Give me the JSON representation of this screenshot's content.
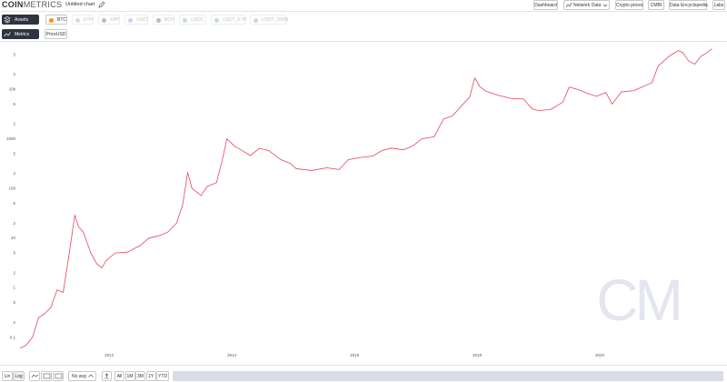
{
  "header": {
    "logo_bold": "COIN",
    "logo_light": "METRICS",
    "title": "Untitled chart",
    "nav": [
      "Dashboard",
      "Network Data",
      "Crypto prices",
      "CMBI",
      "Data Encyclopedia",
      "Labs"
    ]
  },
  "assets": {
    "label": "Assets",
    "chips": [
      "BTC",
      "ETH",
      "XRP",
      "USDT",
      "BCH",
      "USDC",
      "USDT_ETH",
      "USDT_OMNI"
    ]
  },
  "metrics": {
    "label": "Metrics"
  },
  "chart_data": {
    "type": "line",
    "log": true,
    "grid": false,
    "x": [
      2010.55,
      2010.65,
      2010.75,
      2010.85,
      2010.95,
      2011.05,
      2011.15,
      2011.25,
      2011.35,
      2011.44,
      2011.5,
      2011.58,
      2011.7,
      2011.8,
      2011.88,
      2011.95,
      2012.1,
      2012.3,
      2012.5,
      2012.65,
      2012.8,
      2012.95,
      2013.1,
      2013.2,
      2013.28,
      2013.35,
      2013.5,
      2013.6,
      2013.75,
      2013.85,
      2013.92,
      2014.05,
      2014.15,
      2014.3,
      2014.45,
      2014.6,
      2014.8,
      2014.95,
      2015.05,
      2015.3,
      2015.55,
      2015.75,
      2015.9,
      2016.1,
      2016.3,
      2016.45,
      2016.6,
      2016.8,
      2016.95,
      2017.1,
      2017.3,
      2017.45,
      2017.6,
      2017.75,
      2017.88,
      2017.96,
      2018.05,
      2018.15,
      2018.35,
      2018.55,
      2018.75,
      2018.9,
      2019.0,
      2019.2,
      2019.4,
      2019.5,
      2019.65,
      2019.8,
      2019.95,
      2020.1,
      2020.2,
      2020.35,
      2020.55,
      2020.7,
      2020.85,
      2020.95,
      2021.05,
      2021.15,
      2021.28,
      2021.35,
      2021.45,
      2021.55,
      2021.65,
      2021.75,
      2021.83
    ],
    "series": [
      {
        "name": "PriceUSD",
        "color": "#e0485c",
        "values": [
          0.06,
          0.07,
          0.1,
          0.25,
          0.3,
          0.4,
          0.9,
          0.8,
          5,
          29,
          17,
          13,
          5,
          3,
          2.5,
          3.5,
          5,
          5.2,
          7,
          10,
          11,
          13,
          20,
          48,
          210,
          100,
          72,
          110,
          130,
          400,
          1000,
          700,
          600,
          460,
          640,
          580,
          380,
          320,
          250,
          230,
          260,
          240,
          380,
          420,
          450,
          580,
          650,
          600,
          720,
          1000,
          1100,
          2500,
          2900,
          4700,
          7000,
          17000,
          11000,
          9000,
          7500,
          6500,
          6400,
          4000,
          3700,
          3900,
          5500,
          11000,
          9800,
          8200,
          7200,
          8600,
          5000,
          8800,
          9300,
          11200,
          13500,
          29000,
          38000,
          48000,
          60000,
          55000,
          37000,
          32000,
          46000,
          55000,
          65000
        ]
      }
    ],
    "xlim": [
      2010.22,
      2022.0
    ],
    "xticks": [
      2012,
      2014,
      2016,
      2018,
      2020
    ],
    "ylim": [
      0.036,
      90000
    ],
    "yticks": [
      {
        "value": 50000,
        "label": "5"
      },
      {
        "value": 20000,
        "label": "2"
      },
      {
        "value": 10000,
        "label": "10k"
      },
      {
        "value": 5000,
        "label": "5"
      },
      {
        "value": 2000,
        "label": "2"
      },
      1000,
      {
        "value": 500,
        "label": "5"
      },
      {
        "value": 200,
        "label": "2"
      },
      100,
      {
        "value": 50,
        "label": "5"
      },
      {
        "value": 20,
        "label": "2"
      },
      10,
      {
        "value": 5,
        "label": "5"
      },
      {
        "value": 2,
        "label": "2"
      },
      1,
      {
        "value": 0.5,
        "label": "5"
      },
      {
        "value": 0.2,
        "label": "2"
      },
      0.1
    ]
  },
  "watermark": "CM",
  "toolbar": {
    "scale": [
      "Lin",
      "Log"
    ],
    "average": "No avg",
    "ranges": [
      "All",
      "1M",
      "3M",
      "1Y",
      "YTD"
    ]
  }
}
